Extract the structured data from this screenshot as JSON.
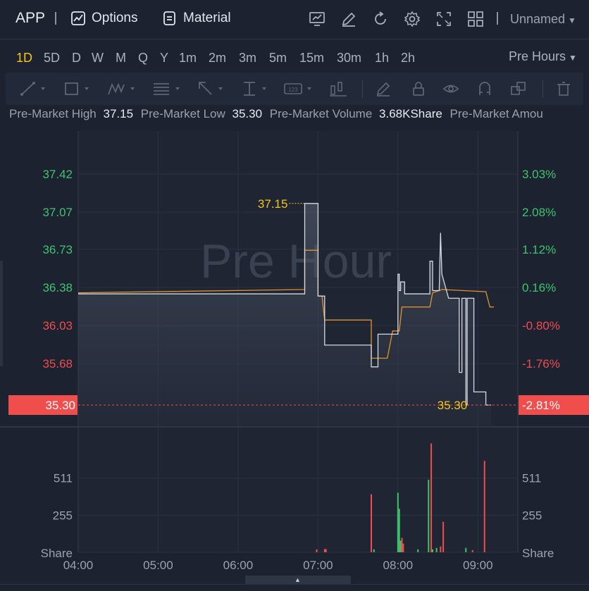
{
  "header": {
    "ticker": "APP",
    "options_label": "Options",
    "material_label": "Material",
    "layout_name": "Unnamed"
  },
  "periods": {
    "items": [
      "1D",
      "5D",
      "D",
      "W",
      "M",
      "Q",
      "Y",
      "1m",
      "2m",
      "3m",
      "5m",
      "15m",
      "30m",
      "1h",
      "2h"
    ],
    "active": "1D",
    "session_select": "Pre Hours"
  },
  "info": {
    "high_label": "Pre-Market High",
    "high_value": "37.15",
    "low_label": "Pre-Market Low",
    "low_value": "35.30",
    "volume_label": "Pre-Market Volume",
    "volume_value": "3.68KShare",
    "amount_label": "Pre-Market Amou"
  },
  "colors": {
    "up": "#3ec46d",
    "down": "#f04d4d",
    "price_line": "#d6dae2",
    "avg_line": "#e0922f",
    "highlight": "#f5c518",
    "background": "#1c2230",
    "grid": "#2b3242"
  },
  "chart_data": {
    "type": "line",
    "watermark": "Pre Hour",
    "x_ticks": [
      "04:00",
      "05:00",
      "06:00",
      "07:00",
      "08:00",
      "09:00"
    ],
    "price_axis_left": [
      "37.42",
      "37.07",
      "36.73",
      "36.38",
      "36.03",
      "35.68"
    ],
    "price_axis_right": [
      "3.03%",
      "2.08%",
      "1.12%",
      "0.16%",
      "-0.80%",
      "-1.76%"
    ],
    "ylim": [
      35.3,
      37.42
    ],
    "last_price_label": "35.30",
    "last_change_label": "-2.81%",
    "high_marker": {
      "time": "06:50",
      "value": 37.15,
      "label": "37.15"
    },
    "low_marker": {
      "time": "09:10",
      "value": 35.3,
      "label": "35.30"
    },
    "price_series": [
      [
        "04:00",
        36.32
      ],
      [
        "06:50",
        36.32
      ],
      [
        "06:50",
        37.15
      ],
      [
        "07:00",
        37.15
      ],
      [
        "07:00",
        36.3
      ],
      [
        "07:05",
        36.3
      ],
      [
        "07:05",
        35.85
      ],
      [
        "07:40",
        35.85
      ],
      [
        "07:40",
        35.65
      ],
      [
        "07:45",
        35.65
      ],
      [
        "07:45",
        35.95
      ],
      [
        "08:00",
        35.95
      ],
      [
        "08:00",
        36.5
      ],
      [
        "08:01",
        36.5
      ],
      [
        "08:01",
        36.35
      ],
      [
        "08:02",
        36.35
      ],
      [
        "08:02",
        36.43
      ],
      [
        "08:05",
        36.43
      ],
      [
        "08:05",
        36.32
      ],
      [
        "08:24",
        36.32
      ],
      [
        "08:24",
        36.62
      ],
      [
        "08:26",
        36.62
      ],
      [
        "08:26",
        36.35
      ],
      [
        "08:31",
        36.35
      ],
      [
        "08:32",
        36.88
      ],
      [
        "08:33",
        36.5
      ],
      [
        "08:38",
        36.28
      ],
      [
        "08:46",
        36.28
      ],
      [
        "08:46",
        35.6
      ],
      [
        "08:48",
        35.6
      ],
      [
        "08:48",
        36.28
      ],
      [
        "08:51",
        36.28
      ],
      [
        "08:51",
        35.3
      ],
      [
        "08:52",
        35.3
      ],
      [
        "08:52",
        36.28
      ],
      [
        "08:57",
        36.28
      ],
      [
        "08:57",
        35.42
      ],
      [
        "09:06",
        35.42
      ],
      [
        "09:06",
        35.3
      ],
      [
        "09:10",
        35.3
      ]
    ],
    "avg_series": [
      [
        "04:00",
        36.33
      ],
      [
        "06:50",
        36.36
      ],
      [
        "06:50",
        36.72
      ],
      [
        "07:00",
        36.72
      ],
      [
        "07:00",
        36.3
      ],
      [
        "07:03",
        36.3
      ],
      [
        "07:05",
        36.08
      ],
      [
        "07:40",
        36.08
      ],
      [
        "07:40",
        35.73
      ],
      [
        "07:52",
        35.73
      ],
      [
        "07:56",
        35.98
      ],
      [
        "08:01",
        35.98
      ],
      [
        "08:03",
        36.2
      ],
      [
        "08:24",
        36.2
      ],
      [
        "08:26",
        36.33
      ],
      [
        "08:31",
        36.35
      ],
      [
        "08:33",
        36.36
      ],
      [
        "09:06",
        36.34
      ],
      [
        "09:09",
        36.2
      ],
      [
        "09:12",
        36.2
      ]
    ],
    "volume_axis": [
      "511",
      "255",
      "Share"
    ],
    "volume_ylim": [
      0,
      767
    ],
    "volume_bars": [
      {
        "time": "06:59",
        "value": 20,
        "dir": "down"
      },
      {
        "time": "07:05",
        "value": 22,
        "dir": "down"
      },
      {
        "time": "07:06",
        "value": 22,
        "dir": "down"
      },
      {
        "time": "07:40",
        "value": 400,
        "dir": "down"
      },
      {
        "time": "07:42",
        "value": 20,
        "dir": "up"
      },
      {
        "time": "08:00",
        "value": 410,
        "dir": "up"
      },
      {
        "time": "08:01",
        "value": 300,
        "dir": "up"
      },
      {
        "time": "08:02",
        "value": 80,
        "dir": "up"
      },
      {
        "time": "08:03",
        "value": 100,
        "dir": "down"
      },
      {
        "time": "08:04",
        "value": 60,
        "dir": "down"
      },
      {
        "time": "08:15",
        "value": 20,
        "dir": "up"
      },
      {
        "time": "08:23",
        "value": 500,
        "dir": "up"
      },
      {
        "time": "08:25",
        "value": 750,
        "dir": "down"
      },
      {
        "time": "08:26",
        "value": 20,
        "dir": "up"
      },
      {
        "time": "08:29",
        "value": 30,
        "dir": "up"
      },
      {
        "time": "08:32",
        "value": 40,
        "dir": "down"
      },
      {
        "time": "08:34",
        "value": 210,
        "dir": "down"
      },
      {
        "time": "08:51",
        "value": 30,
        "dir": "up"
      },
      {
        "time": "08:56",
        "value": 15,
        "dir": "down"
      },
      {
        "time": "09:05",
        "value": 630,
        "dir": "down"
      }
    ]
  }
}
